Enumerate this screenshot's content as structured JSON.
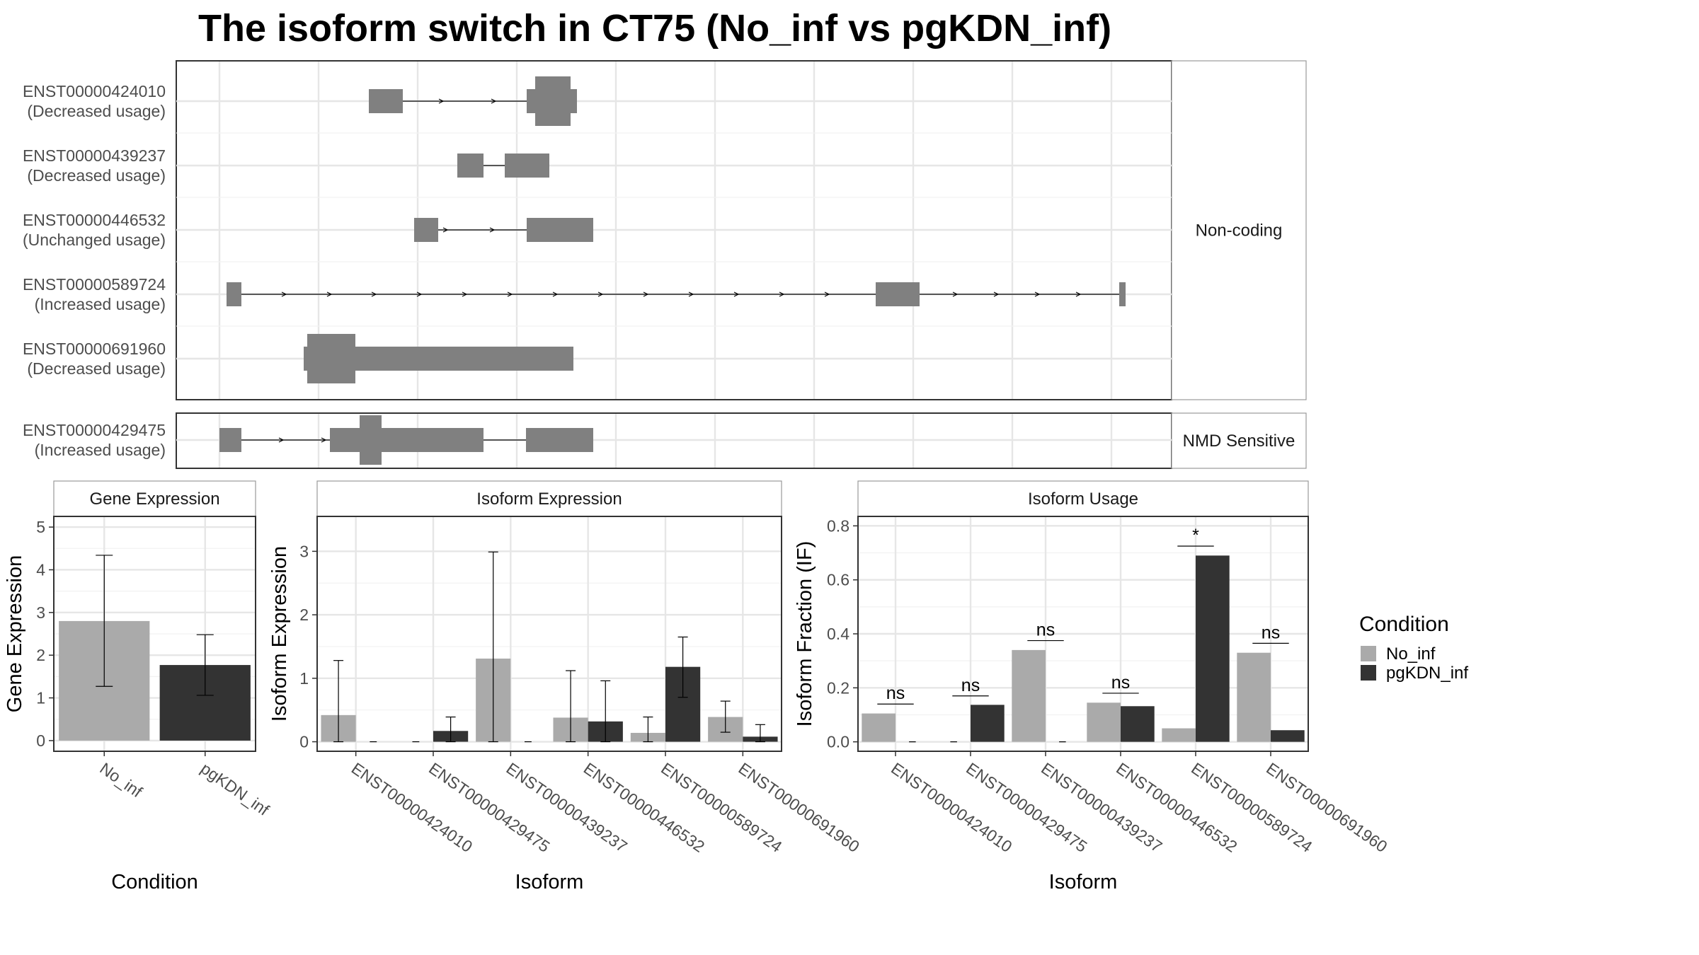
{
  "title": "The isoform switch in CT75 (No_inf vs pgKDN_inf)",
  "colors": {
    "No_inf": "#aaaaaa",
    "pgKDN_inf": "#333333",
    "exon": "#808080"
  },
  "chart_data": [
    {
      "type": "transcript-structure",
      "facets": [
        "Non-coding",
        "NMD Sensitive"
      ],
      "transcripts": [
        {
          "id": "ENST00000424010",
          "usage": "(Decreased usage)",
          "facet": "Non-coding"
        },
        {
          "id": "ENST00000439237",
          "usage": "(Decreased usage)",
          "facet": "Non-coding"
        },
        {
          "id": "ENST00000446532",
          "usage": "(Unchanged usage)",
          "facet": "Non-coding"
        },
        {
          "id": "ENST00000589724",
          "usage": "(Increased usage)",
          "facet": "Non-coding"
        },
        {
          "id": "ENST00000691960",
          "usage": "(Decreased usage)",
          "facet": "Non-coding"
        },
        {
          "id": "ENST00000429475",
          "usage": "(Increased usage)",
          "facet": "NMD Sensitive"
        }
      ]
    },
    {
      "type": "bar",
      "strip": "Gene Expression",
      "xlabel": "Condition",
      "ylabel": "Gene Expression",
      "categories": [
        "No_inf",
        "pgKDN_inf"
      ],
      "values": [
        2.8,
        1.77
      ],
      "error_low": [
        1.27,
        1.06
      ],
      "error_high": [
        4.34,
        2.48
      ],
      "ylim": [
        -0.25,
        5.25
      ],
      "yticks": [
        0,
        1,
        2,
        3,
        4,
        5
      ]
    },
    {
      "type": "bar",
      "strip": "Isoform Expression",
      "xlabel": "Isoform",
      "ylabel": "Isoform Expression",
      "categories": [
        "ENST00000424010",
        "ENST00000429475",
        "ENST00000439237",
        "ENST00000446532",
        "ENST00000589724",
        "ENST00000691960"
      ],
      "series": [
        {
          "name": "No_inf",
          "values": [
            0.42,
            0.0,
            1.31,
            0.38,
            0.14,
            0.39
          ],
          "error_low": [
            0.0,
            0.0,
            0.0,
            0.0,
            0.0,
            0.15
          ],
          "error_high": [
            1.28,
            0.0,
            2.99,
            1.12,
            0.39,
            0.64
          ]
        },
        {
          "name": "pgKDN_inf",
          "values": [
            0.0,
            0.17,
            0.0,
            0.32,
            1.18,
            0.08
          ],
          "error_low": [
            0.0,
            0.0,
            0.0,
            0.0,
            0.7,
            0.0
          ],
          "error_high": [
            0.0,
            0.39,
            0.0,
            0.96,
            1.65,
            0.27
          ]
        }
      ],
      "ylim": [
        -0.15,
        3.55
      ],
      "yticks": [
        0,
        1,
        2,
        3
      ]
    },
    {
      "type": "bar",
      "strip": "Isoform Usage",
      "xlabel": "Isoform",
      "ylabel": "Isoform Fraction (IF)",
      "categories": [
        "ENST00000424010",
        "ENST00000429475",
        "ENST00000439237",
        "ENST00000446532",
        "ENST00000589724",
        "ENST00000691960"
      ],
      "series": [
        {
          "name": "No_inf",
          "values": [
            0.105,
            0.0,
            0.34,
            0.145,
            0.05,
            0.33
          ]
        },
        {
          "name": "pgKDN_inf",
          "values": [
            0.0,
            0.137,
            0.0,
            0.132,
            0.69,
            0.043
          ]
        }
      ],
      "significance": [
        "ns",
        "ns",
        "ns",
        "ns",
        "*",
        "ns"
      ],
      "significance_y": [
        0.14,
        0.17,
        0.375,
        0.18,
        0.725,
        0.365
      ],
      "ylim": [
        -0.035,
        0.835
      ],
      "yticks": [
        0.0,
        0.2,
        0.4,
        0.6,
        0.8
      ],
      "ytick_labels": [
        "0.0",
        "0.2",
        "0.4",
        "0.6",
        "0.8"
      ]
    }
  ],
  "legend": {
    "title": "Condition",
    "items": [
      "No_inf",
      "pgKDN_inf"
    ]
  }
}
